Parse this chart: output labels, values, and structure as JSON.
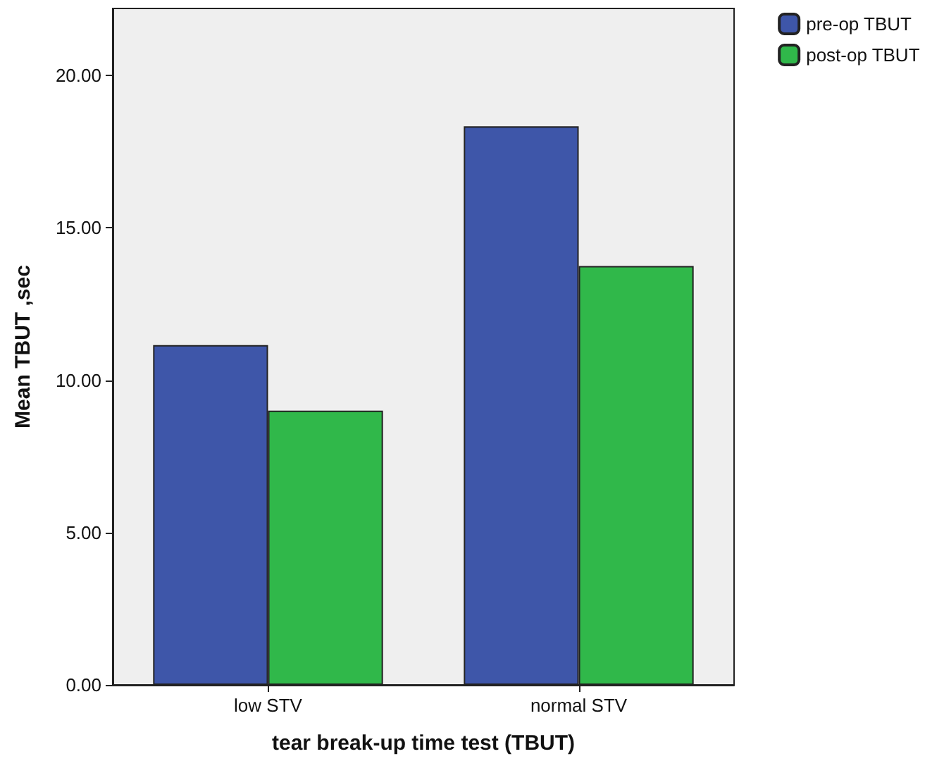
{
  "chart_data": {
    "type": "bar",
    "xlabel": "tear break-up time test (TBUT)",
    "ylabel": "Mean TBUT ,sec",
    "categories": [
      "low STV",
      "normal STV"
    ],
    "series": [
      {
        "name": "pre-op TBUT",
        "color": "#3e56a9",
        "values": [
          11.15,
          18.33
        ]
      },
      {
        "name": "post-op TBUT",
        "color": "#30b84a",
        "values": [
          9.0,
          13.75
        ]
      }
    ],
    "ylim": [
      0,
      22.2
    ],
    "yticks": [
      {
        "value": 0,
        "label": "0.00"
      },
      {
        "value": 5,
        "label": "5.00"
      },
      {
        "value": 10,
        "label": "10.00"
      },
      {
        "value": 15,
        "label": "15.00"
      },
      {
        "value": 20,
        "label": "20.00"
      }
    ],
    "grid": false,
    "legend": "top right"
  }
}
